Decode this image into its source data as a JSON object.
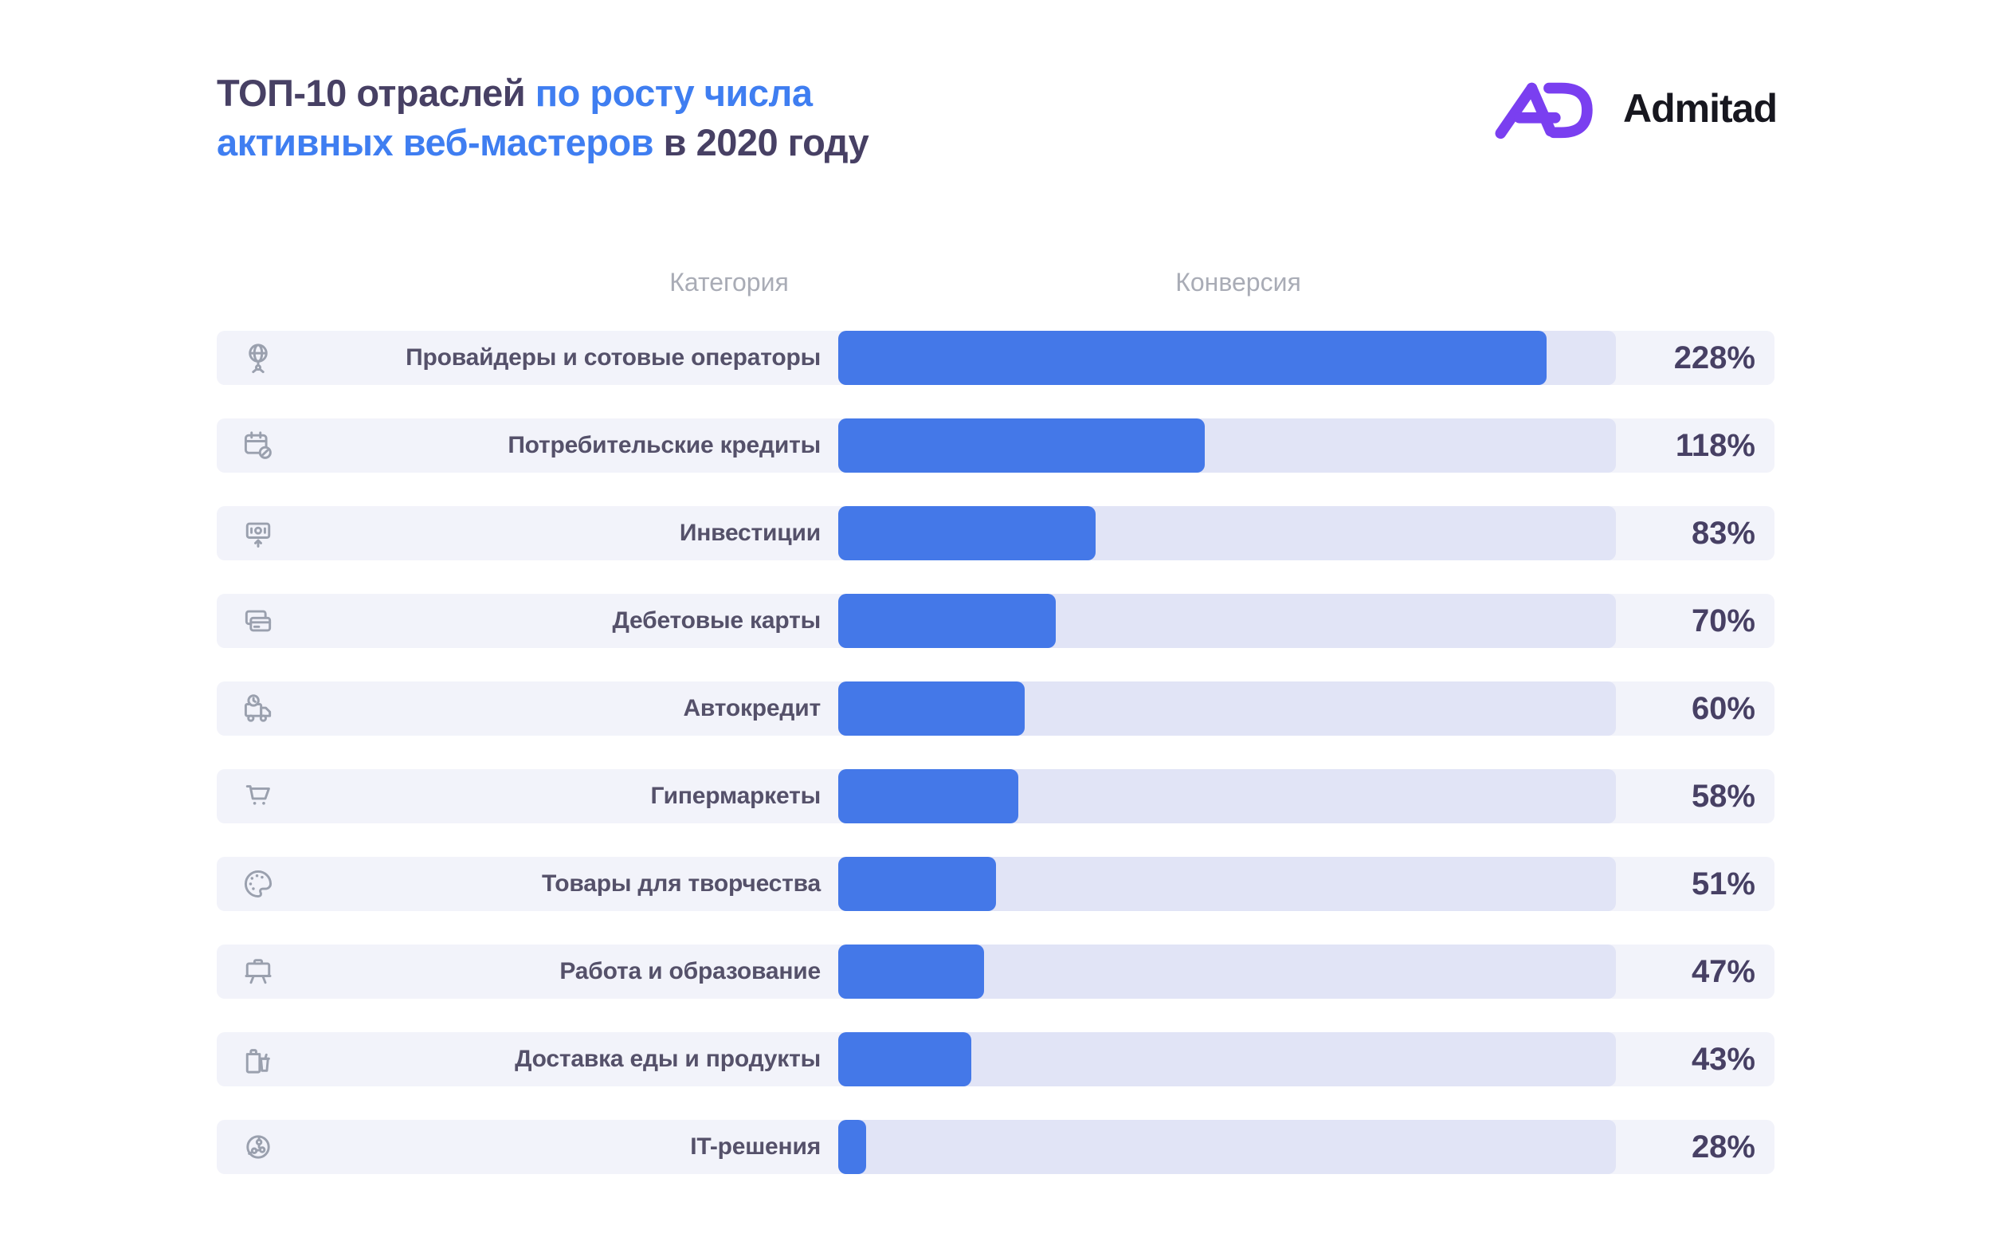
{
  "header": {
    "title_line1_dark": "ТОП-10 отраслей ",
    "title_line1_blue": "по росту числа",
    "title_line2_blue": "активных веб-мастеров",
    "title_line2_dark": " в 2020 году",
    "logo_text": "Admitad"
  },
  "columns": {
    "category": "Категория",
    "conversion": "Конверсия"
  },
  "chart_data": {
    "type": "bar",
    "orientation": "horizontal",
    "title": "ТОП-10 отраслей по росту числа активных веб-мастеров в 2020 году",
    "value_suffix": "%",
    "categories": [
      "Провайдеры и сотовые операторы",
      "Потребительские кредиты",
      "Инвестиции",
      "Дебетовые карты",
      "Автокредит",
      "Гипермаркеты",
      "Товары для творчества",
      "Работа и образование",
      "Доставка еды и продукты",
      "IT-решения"
    ],
    "values": [
      228,
      118,
      83,
      70,
      60,
      58,
      51,
      47,
      43,
      28
    ],
    "icons": [
      "globe-network-icon",
      "calendar-coin-icon",
      "money-growth-icon",
      "credit-cards-icon",
      "delivery-truck-icon",
      "shopping-cart-icon",
      "paint-palette-icon",
      "easel-board-icon",
      "grocery-bag-icon",
      "it-sphere-icon"
    ],
    "bar_track_fractions": [
      0.911,
      0.471,
      0.331,
      0.28,
      0.24,
      0.232,
      0.203,
      0.188,
      0.171,
      0.036
    ],
    "colors": {
      "bar": "#4478e8",
      "track": "#e1e4f6",
      "row_background": "#f2f3fa",
      "title_dark": "#474064",
      "title_blue": "#3f7ef1",
      "logo_purple": "#7a3ff0"
    },
    "legend": "none",
    "grid": "off"
  }
}
